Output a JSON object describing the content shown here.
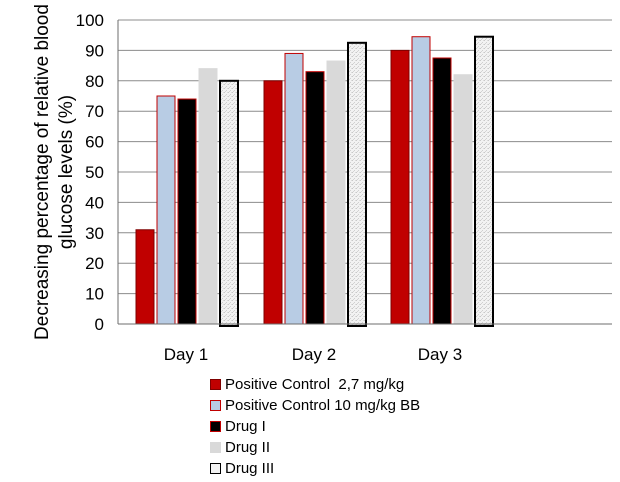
{
  "chart_data": {
    "type": "bar",
    "categories": [
      "Day 1",
      "Day 2",
      "Day 3"
    ],
    "series": [
      {
        "name": "Positive Control  2,7 mg/kg",
        "values": [
          31,
          80,
          90
        ],
        "fill": "#c00000",
        "stroke": "#7f0000"
      },
      {
        "name": "Positive Control 10 mg/kg BB",
        "values": [
          75,
          89,
          94.5
        ],
        "fill": "#b8cce4",
        "stroke": "#c00000"
      },
      {
        "name": "Drug I",
        "values": [
          74,
          83,
          87.5
        ],
        "fill": "#000000",
        "stroke": "#c00000"
      },
      {
        "name": "Drug II",
        "values": [
          84,
          86.5,
          82
        ],
        "fill": "#d9d9d9",
        "stroke": "#d9d9d9"
      },
      {
        "name": "Drug III",
        "values": [
          80,
          92.5,
          94.5
        ],
        "fill": "#f0f0f0",
        "stroke": "#000000"
      }
    ],
    "title": "",
    "xlabel": "",
    "ylabel": "Decreasing percentage of relative blood glucose levels (%)",
    "ylabel_lines": [
      "Decreasing percentage of relative blood",
      "glucose levels (%)"
    ],
    "ylim": [
      0,
      100
    ],
    "yticks": [
      0,
      10,
      20,
      30,
      40,
      50,
      60,
      70,
      80,
      90,
      100
    ],
    "grid": true,
    "legend_position": "bottom"
  }
}
